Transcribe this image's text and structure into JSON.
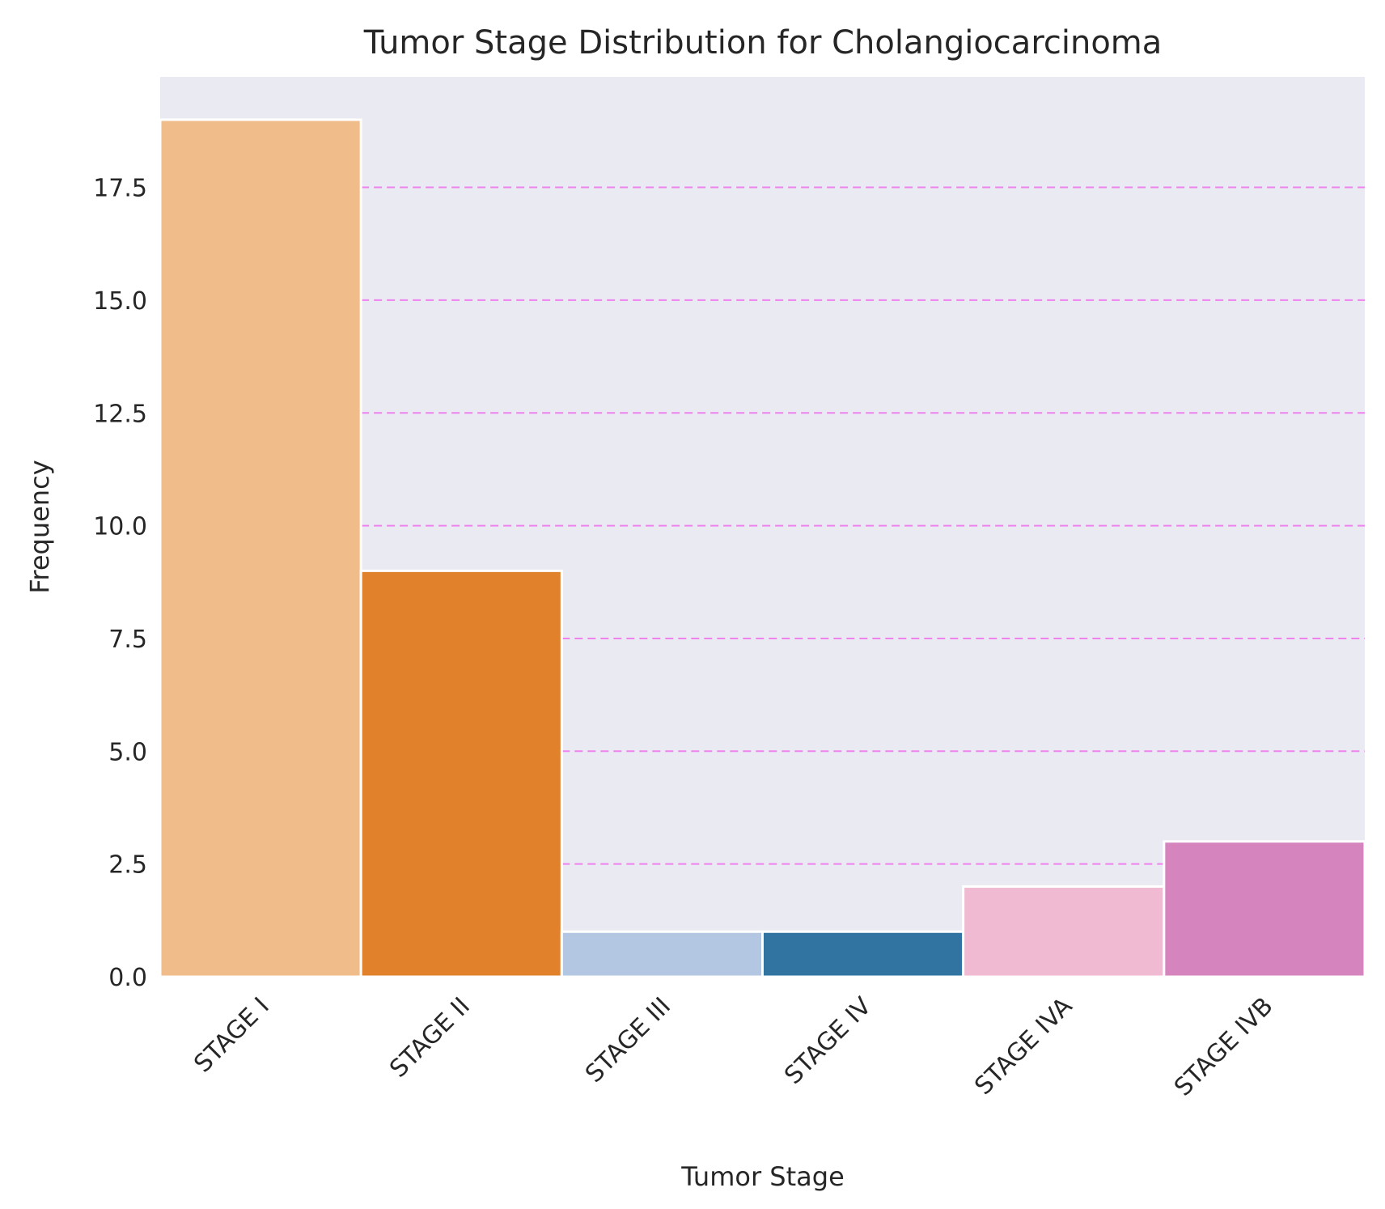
{
  "chart_data": {
    "type": "bar",
    "title": "Tumor Stage Distribution for Cholangiocarcinoma",
    "xlabel": "Tumor Stage",
    "ylabel": "Frequency",
    "categories": [
      "STAGE I",
      "STAGE II",
      "STAGE III",
      "STAGE IV",
      "STAGE IVA",
      "STAGE IVB"
    ],
    "values": [
      19,
      9,
      1,
      1,
      2,
      3
    ],
    "bar_colors": [
      "#f0bc89",
      "#e1812c",
      "#b3c7e2",
      "#3274a1",
      "#f0bbd2",
      "#d584bd"
    ],
    "ylim": [
      0,
      19.95
    ],
    "yticks": [
      0,
      2.5,
      5,
      7.5,
      10,
      12.5,
      15,
      17.5
    ],
    "ytick_labels": [
      "0.0",
      "2.5",
      "5.0",
      "7.5",
      "10.0",
      "12.5",
      "15.0",
      "17.5"
    ],
    "grid": {
      "axis": "y",
      "style": "dashed",
      "color": "#ee82ee"
    },
    "background_color": "#eaeaf2",
    "xtick_rotation": "45"
  }
}
